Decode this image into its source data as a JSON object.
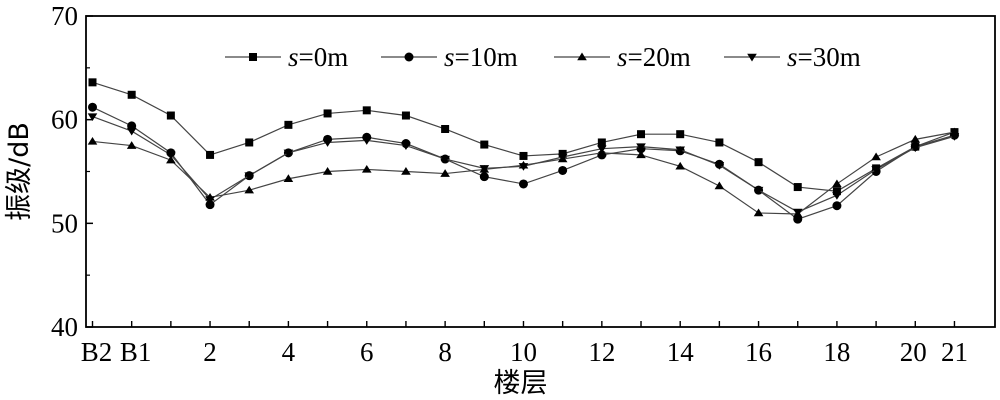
{
  "chart_data": {
    "type": "line",
    "title": "",
    "xlabel": "楼层",
    "ylabel": "振级/dB",
    "ylim": [
      40,
      70
    ],
    "yticks": [
      40,
      50,
      60,
      70
    ],
    "categories": [
      "B2",
      "B1",
      "1",
      "2",
      "3",
      "4",
      "5",
      "6",
      "7",
      "8",
      "9",
      "10",
      "11",
      "12",
      "13",
      "14",
      "15",
      "16",
      "17",
      "18",
      "19",
      "20",
      "21"
    ],
    "xtick_labels": [
      {
        "category": "B2",
        "label": "B2"
      },
      {
        "category": "B1",
        "label": "B1"
      },
      {
        "category": "2",
        "label": "2"
      },
      {
        "category": "4",
        "label": "4"
      },
      {
        "category": "6",
        "label": "6"
      },
      {
        "category": "8",
        "label": "8"
      },
      {
        "category": "10",
        "label": "10"
      },
      {
        "category": "12",
        "label": "12"
      },
      {
        "category": "14",
        "label": "14"
      },
      {
        "category": "16",
        "label": "16"
      },
      {
        "category": "18",
        "label": "18"
      },
      {
        "category": "20",
        "label": "20"
      },
      {
        "category": "21",
        "label": "21"
      }
    ],
    "grid": false,
    "legend_position": "top",
    "series": [
      {
        "name_var": "s",
        "name_value": "=0m",
        "marker": "square",
        "values": [
          63.6,
          62.4,
          60.4,
          56.6,
          57.8,
          59.5,
          60.6,
          60.9,
          60.4,
          59.1,
          57.6,
          56.5,
          56.7,
          57.8,
          58.6,
          58.6,
          57.8,
          55.9,
          53.5,
          53.1,
          55.3,
          57.4,
          58.8
        ]
      },
      {
        "name_var": "s",
        "name_value": "=10m",
        "marker": "circle",
        "values": [
          61.2,
          59.4,
          56.8,
          51.8,
          54.6,
          56.8,
          58.1,
          58.3,
          57.7,
          56.2,
          54.5,
          53.8,
          55.1,
          56.6,
          57.2,
          57.0,
          55.7,
          53.2,
          50.4,
          51.7,
          55.0,
          57.4,
          58.5
        ]
      },
      {
        "name_var": "s",
        "name_value": "=20m",
        "marker": "triangle-up",
        "values": [
          57.9,
          57.5,
          56.1,
          52.5,
          53.2,
          54.3,
          55.0,
          55.2,
          55.0,
          54.8,
          55.2,
          55.6,
          56.2,
          56.8,
          56.6,
          55.5,
          53.6,
          51.0,
          50.9,
          53.8,
          56.4,
          58.1,
          58.8
        ]
      },
      {
        "name_var": "s",
        "name_value": "=30m",
        "marker": "triangle-down",
        "values": [
          60.3,
          58.9,
          56.6,
          52.3,
          54.6,
          56.8,
          57.8,
          58.0,
          57.5,
          56.2,
          55.3,
          55.5,
          56.4,
          57.2,
          57.4,
          57.1,
          55.6,
          53.2,
          51.1,
          52.7,
          55.2,
          57.3,
          58.4
        ]
      }
    ],
    "line_color": "#444444",
    "marker_color": "#000000"
  }
}
